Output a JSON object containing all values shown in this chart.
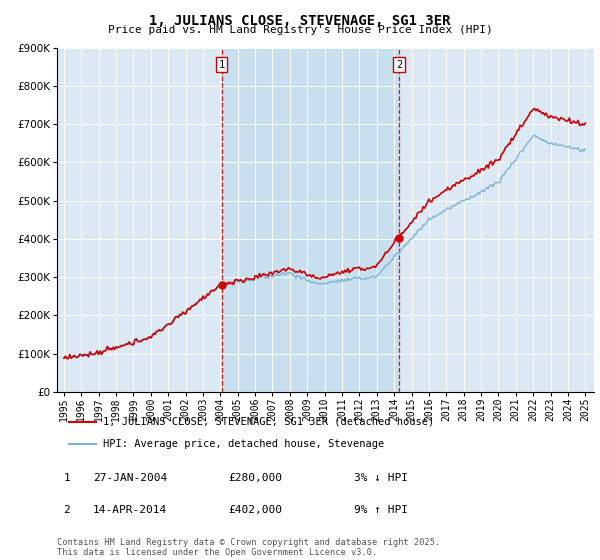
{
  "title": "1, JULIANS CLOSE, STEVENAGE, SG1 3ER",
  "subtitle": "Price paid vs. HM Land Registry's House Price Index (HPI)",
  "legend_line1": "1, JULIANS CLOSE, STEVENAGE, SG1 3ER (detached house)",
  "legend_line2": "HPI: Average price, detached house, Stevenage",
  "footnote": "Contains HM Land Registry data © Crown copyright and database right 2025.\nThis data is licensed under the Open Government Licence v3.0.",
  "sale1_label": "1",
  "sale1_date": "27-JAN-2004",
  "sale1_price": "£280,000",
  "sale1_hpi": "3% ↓ HPI",
  "sale2_label": "2",
  "sale2_date": "14-APR-2014",
  "sale2_price": "£402,000",
  "sale2_hpi": "9% ↑ HPI",
  "sale1_year": 2004.08,
  "sale1_val": 280000,
  "sale2_year": 2014.29,
  "sale2_val": 402000,
  "hpi_color": "#7bb3d4",
  "price_color": "#cc0000",
  "dashed_color": "#cc0000",
  "bg_color": "#dce9f5",
  "bg_between_color": "#c8dff0",
  "grid_color": "#ffffff",
  "ylim_min": 0,
  "ylim_max": 900000,
  "xlim_min": 1994.6,
  "xlim_max": 2025.5
}
